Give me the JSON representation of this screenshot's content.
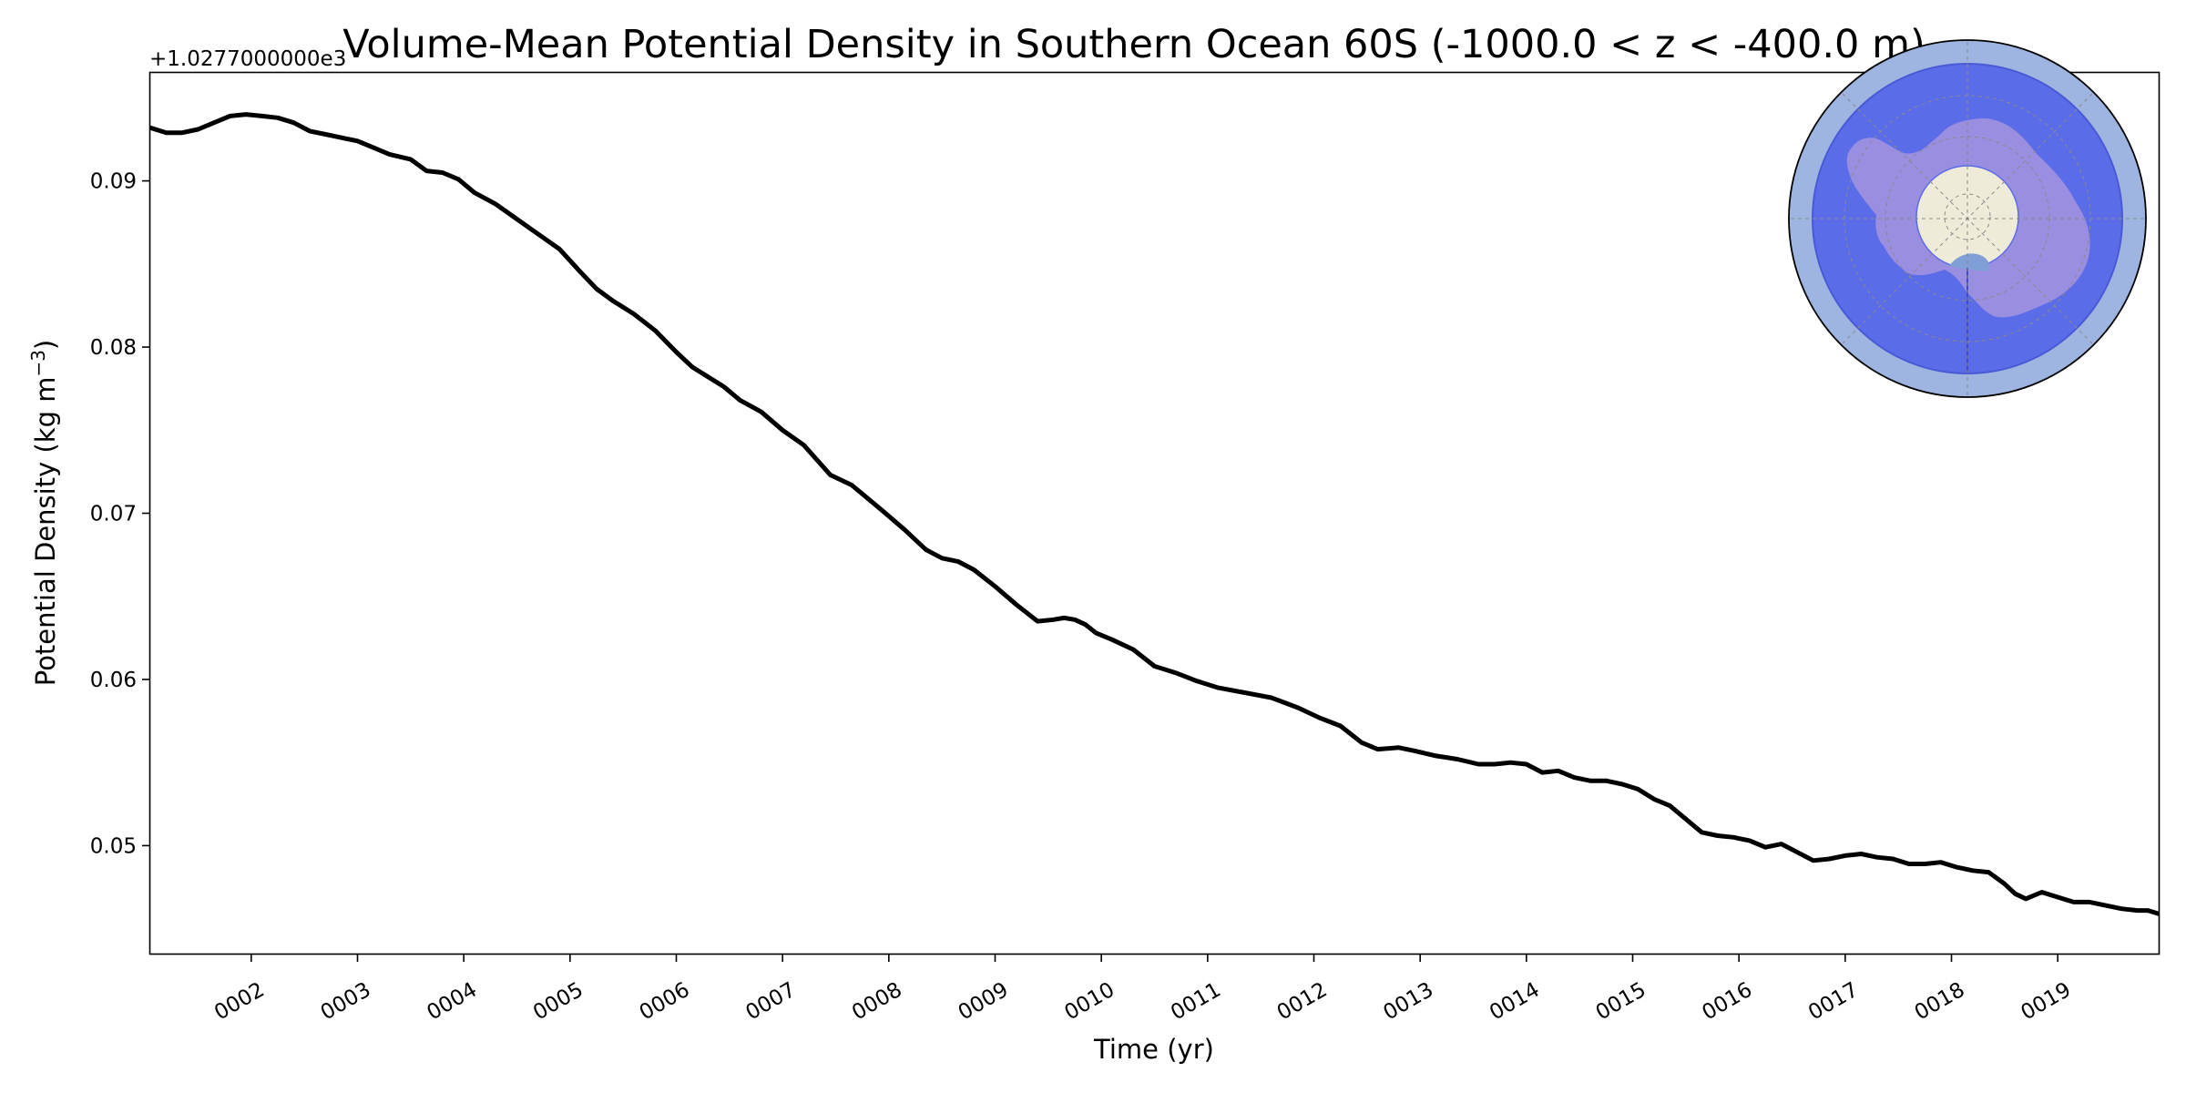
{
  "chart_data": {
    "type": "line",
    "title": "Volume-Mean Potential Density in Southern Ocean 60S (-1000.0 < z < -400.0 m)",
    "xlabel": "Time (yr)",
    "ylabel_main": "Potential Density (kg m",
    "ylabel_exponent": "−3",
    "ylabel_close": ")",
    "y_offset_label": "+1.0277000000e3",
    "xlim": [
      1.05,
      19.95
    ],
    "ylim": [
      0.0435,
      0.0965
    ],
    "x_ticks": [
      2,
      3,
      4,
      5,
      6,
      7,
      8,
      9,
      10,
      11,
      12,
      13,
      14,
      15,
      16,
      17,
      18,
      19
    ],
    "x_tick_labels": [
      "0002",
      "0003",
      "0004",
      "0005",
      "0006",
      "0007",
      "0008",
      "0009",
      "0010",
      "0011",
      "0012",
      "0013",
      "0014",
      "0015",
      "0016",
      "0017",
      "0018",
      "0019"
    ],
    "y_ticks": [
      0.05,
      0.06,
      0.07,
      0.08,
      0.09
    ],
    "y_tick_labels": [
      "0.05",
      "0.06",
      "0.07",
      "0.08",
      "0.09"
    ],
    "series": [
      {
        "name": "Southern Ocean 60S",
        "color": "#000000",
        "x": [
          1.05,
          1.2,
          1.35,
          1.5,
          1.65,
          1.8,
          1.95,
          2.1,
          2.25,
          2.4,
          2.55,
          2.7,
          2.85,
          3.0,
          3.15,
          3.3,
          3.5,
          3.65,
          3.8,
          3.95,
          4.1,
          4.3,
          4.5,
          4.7,
          4.9,
          5.1,
          5.25,
          5.4,
          5.6,
          5.8,
          6.0,
          6.15,
          6.3,
          6.45,
          6.6,
          6.8,
          7.0,
          7.2,
          7.45,
          7.65,
          7.8,
          7.95,
          8.15,
          8.35,
          8.5,
          8.65,
          8.8,
          9.0,
          9.2,
          9.4,
          9.55,
          9.65,
          9.75,
          9.85,
          9.95,
          10.1,
          10.3,
          10.5,
          10.7,
          10.9,
          11.1,
          11.35,
          11.6,
          11.85,
          12.05,
          12.25,
          12.45,
          12.6,
          12.8,
          12.95,
          13.15,
          13.35,
          13.55,
          13.7,
          13.85,
          14.0,
          14.15,
          14.3,
          14.45,
          14.6,
          14.75,
          14.9,
          15.05,
          15.2,
          15.35,
          15.5,
          15.65,
          15.8,
          15.95,
          16.1,
          16.25,
          16.4,
          16.55,
          16.7,
          16.85,
          17.0,
          17.15,
          17.3,
          17.45,
          17.6,
          17.75,
          17.9,
          18.05,
          18.2,
          18.35,
          18.5,
          18.6,
          18.7,
          18.85,
          19.0,
          19.15,
          19.3,
          19.45,
          19.6,
          19.75,
          19.85,
          19.95
        ],
        "values": [
          0.0932,
          0.0929,
          0.0929,
          0.0931,
          0.0935,
          0.0939,
          0.094,
          0.0939,
          0.0938,
          0.0935,
          0.093,
          0.0928,
          0.0926,
          0.0924,
          0.092,
          0.0916,
          0.0913,
          0.0906,
          0.0905,
          0.0901,
          0.0893,
          0.0886,
          0.0877,
          0.0868,
          0.0859,
          0.0845,
          0.0835,
          0.0828,
          0.082,
          0.081,
          0.0797,
          0.0788,
          0.0782,
          0.0776,
          0.0768,
          0.0761,
          0.075,
          0.0741,
          0.0723,
          0.0717,
          0.0709,
          0.0701,
          0.069,
          0.0678,
          0.0673,
          0.0671,
          0.0666,
          0.0656,
          0.0645,
          0.0635,
          0.0636,
          0.0637,
          0.0636,
          0.0633,
          0.0628,
          0.0624,
          0.0618,
          0.0608,
          0.0604,
          0.0599,
          0.0595,
          0.0592,
          0.0589,
          0.0583,
          0.0577,
          0.0572,
          0.0562,
          0.0558,
          0.0559,
          0.0557,
          0.0554,
          0.0552,
          0.0549,
          0.0549,
          0.055,
          0.0549,
          0.0544,
          0.0545,
          0.0541,
          0.0539,
          0.0539,
          0.0537,
          0.0534,
          0.0528,
          0.0524,
          0.0516,
          0.0508,
          0.0506,
          0.0505,
          0.0503,
          0.0499,
          0.0501,
          0.0496,
          0.0491,
          0.0492,
          0.0494,
          0.0495,
          0.0493,
          0.0492,
          0.0489,
          0.0489,
          0.049,
          0.0487,
          0.0485,
          0.0484,
          0.0477,
          0.0471,
          0.0468,
          0.0472,
          0.0469,
          0.0466,
          0.0466,
          0.0464,
          0.0462,
          0.0461,
          0.0461,
          0.0459
        ]
      }
    ],
    "inset_map": {
      "description_type": "south-polar-stereographic",
      "region": "Southern Ocean 60S",
      "colors": {
        "outer_ocean": "#9db5e0",
        "region_fill": "#5b6ce8",
        "land": "#9a8ee0",
        "pole_cap": "#eeecd9",
        "ice_shelf": "#7f9fd6",
        "frame": "#000000"
      }
    }
  }
}
